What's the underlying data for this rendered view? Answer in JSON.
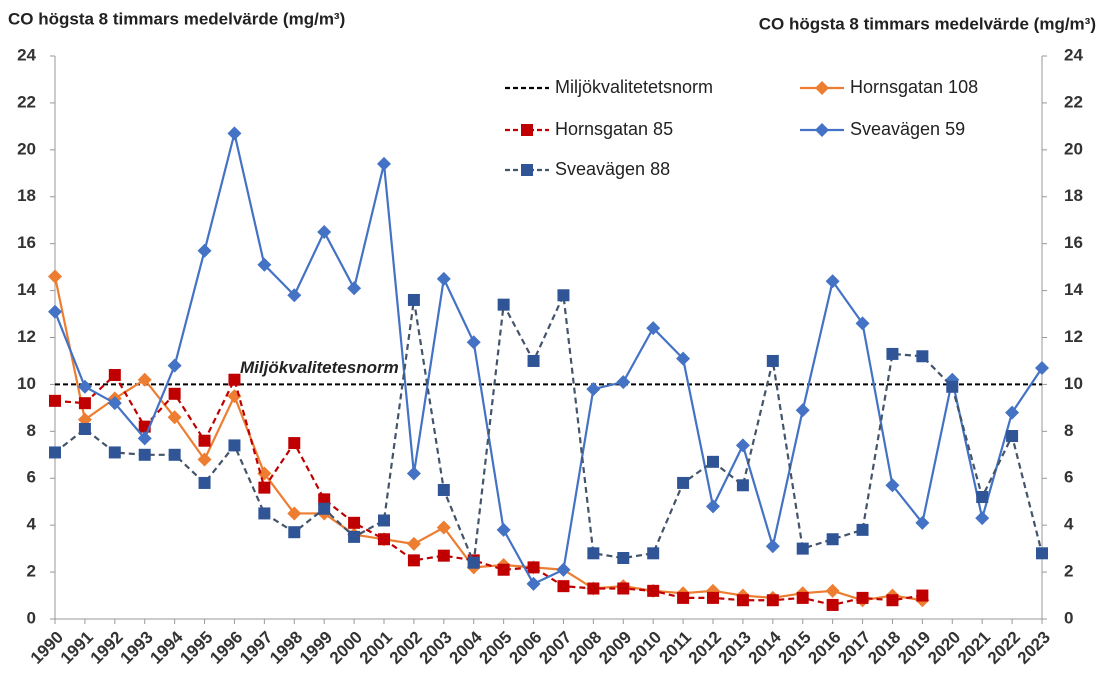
{
  "chart_data": {
    "type": "line",
    "title": "CO högsta 8 timmars medelvärde (mg/m³)",
    "y2_title": "CO högsta 8 timmars medelvärde (mg/m³)",
    "categories": [
      "1990",
      "1991",
      "1992",
      "1993",
      "1994",
      "1995",
      "1996",
      "1997",
      "1998",
      "1999",
      "2000",
      "2001",
      "2002",
      "2003",
      "2004",
      "2005",
      "2006",
      "2007",
      "2008",
      "2009",
      "2010",
      "2011",
      "2012",
      "2013",
      "2014",
      "2015",
      "2016",
      "2017",
      "2018",
      "2019",
      "2020",
      "2021",
      "2022",
      "2023"
    ],
    "reference_line": {
      "name": "Miljökvalitetetsnorm",
      "value": 10,
      "color": "#000000",
      "annotation": "Miljökvalitetesnorm"
    },
    "series": [
      {
        "name": "Hornsgatan 108",
        "color": "#ED7D31",
        "marker": "diamond",
        "dashed": false,
        "values": [
          14.6,
          8.5,
          9.4,
          10.2,
          8.6,
          6.8,
          9.5,
          6.2,
          4.5,
          4.5,
          3.6,
          3.4,
          3.2,
          3.9,
          2.2,
          2.3,
          2.2,
          2.1,
          1.3,
          1.4,
          1.2,
          1.1,
          1.2,
          1.0,
          0.9,
          1.1,
          1.2,
          0.8,
          1.0,
          0.8,
          null,
          null,
          null,
          null
        ]
      },
      {
        "name": "Hornsgatan 85",
        "color": "#C00000",
        "marker": "square",
        "dashed": true,
        "values": [
          9.3,
          9.2,
          10.4,
          8.2,
          9.6,
          7.6,
          10.2,
          5.6,
          7.5,
          5.1,
          4.1,
          3.4,
          2.5,
          2.7,
          2.5,
          2.1,
          2.2,
          1.4,
          1.3,
          1.3,
          1.2,
          0.9,
          0.9,
          0.8,
          0.8,
          0.9,
          0.6,
          0.9,
          0.8,
          1.0,
          null,
          null,
          null,
          null
        ]
      },
      {
        "name": "Sveavägen 59",
        "color": "#4472C4",
        "marker": "diamond",
        "dashed": false,
        "values": [
          13.1,
          9.9,
          9.2,
          7.7,
          10.8,
          15.7,
          20.7,
          15.1,
          13.8,
          16.5,
          14.1,
          19.4,
          6.2,
          14.5,
          11.8,
          3.8,
          1.5,
          2.1,
          9.8,
          10.1,
          12.4,
          11.1,
          4.8,
          7.4,
          3.1,
          8.9,
          14.4,
          12.6,
          5.7,
          4.1,
          10.2,
          4.3,
          8.8,
          10.7
        ]
      },
      {
        "name": "Sveavägen 88",
        "color": "#2F5597",
        "line_color": "#44546A",
        "marker": "square",
        "dashed": true,
        "values": [
          7.1,
          8.1,
          7.1,
          7.0,
          7.0,
          5.8,
          7.4,
          4.5,
          3.7,
          4.7,
          3.5,
          4.2,
          13.6,
          5.5,
          2.4,
          13.4,
          11.0,
          13.8,
          2.8,
          2.6,
          2.8,
          5.8,
          6.7,
          5.7,
          11.0,
          3.0,
          3.4,
          3.8,
          11.3,
          11.2,
          9.9,
          5.2,
          7.8,
          2.8
        ]
      }
    ],
    "ylim": [
      0,
      24
    ],
    "yticks": [
      0,
      2,
      4,
      6,
      8,
      10,
      12,
      14,
      16,
      18,
      20,
      22,
      24
    ],
    "y2lim": [
      0,
      24
    ],
    "y2ticks": [
      0,
      2,
      4,
      6,
      8,
      10,
      12,
      14,
      16,
      18,
      20,
      22,
      24
    ],
    "legend": "top-right",
    "grid": false
  }
}
